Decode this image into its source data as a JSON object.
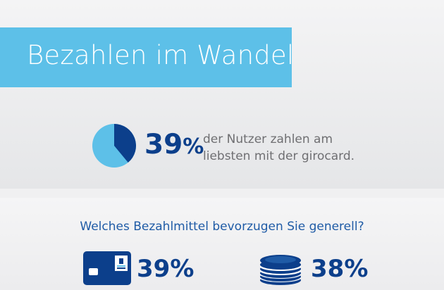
{
  "header": {
    "title": "Bezahlen im Wandel"
  },
  "highlight": {
    "percent": "39",
    "percent_sign": "%",
    "fraction": 0.39,
    "description_line1": "der Nutzer zahlen am",
    "description_line2": "liebsten mit der girocard."
  },
  "survey": {
    "question": "Welches Bezahlmittel bevorzugen Sie generell?",
    "items": [
      {
        "icon": "bank-card-icon",
        "percent": "39%",
        "value": 39
      },
      {
        "icon": "coins-icon",
        "percent": "38%",
        "value": 38
      }
    ]
  },
  "colors": {
    "banner": "#5dc0e8",
    "pie_highlight": "#0c3f8b",
    "pie_rest": "#5dc0e8",
    "percent_text": "#0c3f8b",
    "question_text": "#1f5ba6"
  }
}
